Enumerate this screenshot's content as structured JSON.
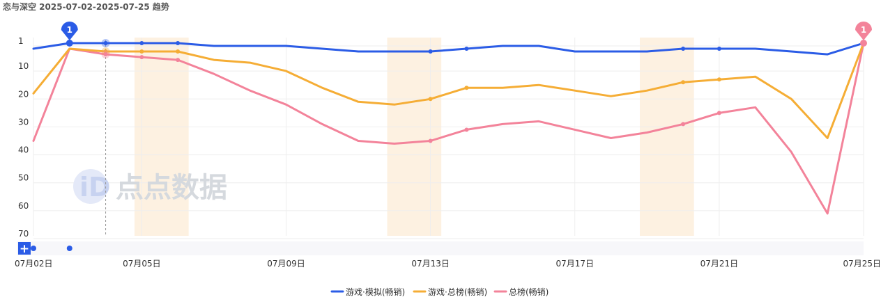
{
  "title": "恋与深空 2025-07-02-2025-07-25 趋势",
  "chart_data": {
    "type": "line",
    "y_axis": {
      "inverted": true,
      "ylim": [
        0,
        70
      ],
      "ticks": [
        1,
        10,
        20,
        30,
        40,
        50,
        60,
        70
      ]
    },
    "x_axis": {
      "tick_labels": [
        "07月02日",
        "07月05日",
        "07月09日",
        "07月13日",
        "07月17日",
        "07月21日",
        "07月25日"
      ]
    },
    "x": [
      "07-02",
      "07-03",
      "07-04",
      "07-05",
      "07-06",
      "07-07",
      "07-08",
      "07-09",
      "07-10",
      "07-11",
      "07-12",
      "07-13",
      "07-14",
      "07-15",
      "07-16",
      "07-17",
      "07-18",
      "07-19",
      "07-20",
      "07-21",
      "07-22",
      "07-23",
      "07-24",
      "07-25"
    ],
    "series": [
      {
        "name": "游戏·模拟(畅销)",
        "color": "#2b5ce6",
        "values": [
          3,
          1,
          1,
          1,
          1,
          2,
          2,
          2,
          3,
          4,
          4,
          4,
          3,
          2,
          2,
          4,
          4,
          4,
          3,
          3,
          3,
          4,
          5,
          1
        ]
      },
      {
        "name": "游戏·总榜(畅销)",
        "color": "#f5ad35",
        "values": [
          19,
          3,
          4,
          4,
          4,
          7,
          8,
          11,
          17,
          22,
          23,
          21,
          17,
          17,
          16,
          18,
          20,
          18,
          15,
          14,
          13,
          21,
          35,
          1
        ]
      },
      {
        "name": "总榜(畅销)",
        "color": "#f3839a",
        "values": [
          36,
          3,
          5,
          6,
          7,
          12,
          18,
          23,
          30,
          36,
          37,
          36,
          32,
          30,
          29,
          32,
          35,
          33,
          30,
          26,
          24,
          40,
          62,
          1
        ]
      }
    ],
    "marker_indices": [
      3,
      4,
      11,
      12,
      18,
      19
    ],
    "highlight_ranges": [
      [
        2.8,
        4.3
      ],
      [
        9.8,
        11.3
      ],
      [
        16.8,
        18.3
      ]
    ],
    "hover_index": 2,
    "start_pin": {
      "series": 0,
      "index": 1,
      "label": "1"
    },
    "end_pin": {
      "series": 2,
      "index": 23,
      "label": "1"
    },
    "legend_position": "bottom-center",
    "grid": true,
    "watermark": "点点数据"
  },
  "slider": {
    "add_symbol": "+"
  }
}
